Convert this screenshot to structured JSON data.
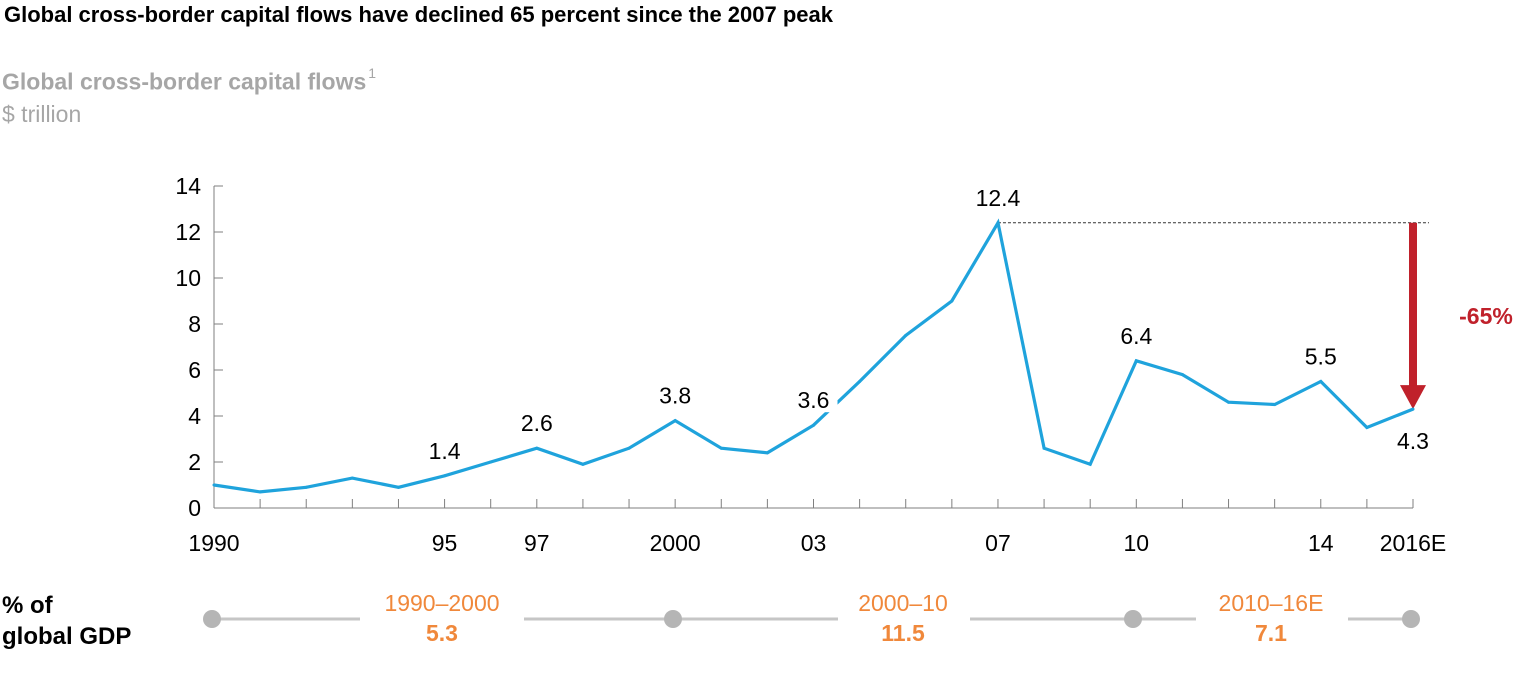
{
  "headline": "Global cross-border capital flows have declined 65 percent since the 2007 peak",
  "chart_title": "Global cross-border capital flows",
  "chart_title_footnote": "1",
  "unit": "$ trillion",
  "colors": {
    "line": "#1fa3dc",
    "arrow": "#c0212b",
    "accent": "#f0883b",
    "gray": "#a6a6a6",
    "timeline": "#c6c6c6",
    "dot": "#b5b5b5"
  },
  "chart_data": {
    "type": "line",
    "x": [
      1990,
      1991,
      1992,
      1993,
      1994,
      1995,
      1996,
      1997,
      1998,
      1999,
      2000,
      2001,
      2002,
      2003,
      2004,
      2005,
      2006,
      2007,
      2008,
      2009,
      2010,
      2011,
      2012,
      2013,
      2014,
      2015,
      2016
    ],
    "series": [
      {
        "values": [
          1.0,
          0.7,
          0.9,
          1.3,
          0.9,
          1.4,
          2.0,
          2.6,
          1.9,
          2.6,
          3.8,
          2.6,
          2.4,
          3.6,
          5.5,
          7.5,
          9.0,
          12.4,
          2.6,
          1.9,
          6.4,
          5.8,
          4.6,
          4.5,
          5.5,
          3.5,
          4.3
        ]
      }
    ],
    "ylim": [
      0,
      14
    ],
    "yticks": [
      "0",
      "2",
      "4",
      "6",
      "8",
      "10",
      "12",
      "14"
    ],
    "xticks": [
      {
        "year": 1990,
        "label": "1990"
      },
      {
        "year": 1995,
        "label": "95"
      },
      {
        "year": 1997,
        "label": "97"
      },
      {
        "year": 2000,
        "label": "2000"
      },
      {
        "year": 2003,
        "label": "03"
      },
      {
        "year": 2007,
        "label": "07"
      },
      {
        "year": 2010,
        "label": "10"
      },
      {
        "year": 2014,
        "label": "14"
      },
      {
        "year": 2016,
        "label": "2016E"
      }
    ],
    "data_labels": [
      {
        "year": 1995,
        "value": 1.4,
        "label": "1.4"
      },
      {
        "year": 1997,
        "value": 2.6,
        "label": "2.6"
      },
      {
        "year": 2000,
        "value": 3.8,
        "label": "3.8"
      },
      {
        "year": 2003,
        "value": 3.6,
        "label": "3.6"
      },
      {
        "year": 2007,
        "value": 12.4,
        "label": "12.4"
      },
      {
        "year": 2010,
        "value": 6.4,
        "label": "6.4"
      },
      {
        "year": 2014,
        "value": 5.5,
        "label": "5.5"
      },
      {
        "year": 2016,
        "value": 4.3,
        "label": "4.3"
      }
    ],
    "annotation": {
      "label": "-65%",
      "from_year": 2007,
      "from_value": 12.4,
      "to_year": 2016,
      "to_value": 4.3
    },
    "grid": false
  },
  "gdp": {
    "label_line1": "% of",
    "label_line2": "global GDP",
    "periods": [
      {
        "label": "1990–2000",
        "value": "5.3"
      },
      {
        "label": "2000–10",
        "value": "11.5"
      },
      {
        "label": "2010–16E",
        "value": "7.1"
      }
    ]
  }
}
